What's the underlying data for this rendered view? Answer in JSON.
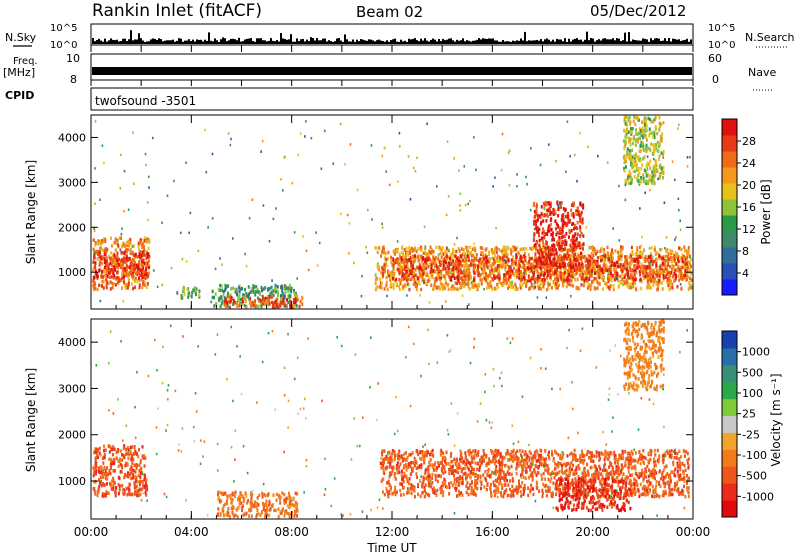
{
  "header": {
    "station": "Rankin Inlet (fitACF)",
    "beam": "Beam 02",
    "date": "05/Dec/2012"
  },
  "strip_labels": {
    "nsky": "N.Sky",
    "nsky_ticks": [
      "10^5",
      "10^0"
    ],
    "nsearch": "N.Search",
    "freq_top": "Freq.",
    "freq_unit": "[MHz]",
    "freq_ticks": [
      "10",
      "8"
    ],
    "nave": "Nave",
    "nave_ticks": [
      "60",
      "0"
    ],
    "cpid": "CPID",
    "cpid_value": "twofsound  -3501"
  },
  "colors": {
    "power_scale": [
      "#1a1aff",
      "#2a4fb8",
      "#2f6f9a",
      "#3f8a6a",
      "#2a9a4a",
      "#8fc43a",
      "#e8c21a",
      "#f39a1a",
      "#f06a18",
      "#e83a16",
      "#e01010"
    ],
    "velocity_scale": [
      "#1a3fb0",
      "#2a6fa8",
      "#3a8f7a",
      "#2aa84a",
      "#7ecb3a",
      "#c8c8c8",
      "#f2a42a",
      "#f27a1a",
      "#ef561a",
      "#ea2a1a",
      "#e00a0a"
    ]
  },
  "chart_data": [
    {
      "type": "heatmap",
      "panel": "power",
      "ylabel": "Slant Range [km]",
      "ylim": [
        180,
        4500
      ],
      "yticks": [
        "1000",
        "2000",
        "3000",
        "4000"
      ],
      "xlim_hours": [
        0,
        24
      ],
      "colorbar_label": "Power [dB]",
      "colorbar_ticks": [
        "4",
        "8",
        "12",
        "16",
        "20",
        "24",
        "28"
      ],
      "colorbar_range": [
        0,
        32
      ],
      "regions": [
        {
          "t0": 0.05,
          "t1": 2.3,
          "r0": 650,
          "r1": 1800,
          "value": 24
        },
        {
          "t0": 0.05,
          "t1": 2.3,
          "r0": 900,
          "r1": 1500,
          "value": 29
        },
        {
          "t0": 3.4,
          "t1": 4.3,
          "r0": 450,
          "r1": 700,
          "value": 14
        },
        {
          "t0": 4.8,
          "t1": 8.2,
          "r0": 250,
          "r1": 750,
          "value": 12
        },
        {
          "t0": 5.2,
          "t1": 8.4,
          "r0": 250,
          "r1": 500,
          "value": 26
        },
        {
          "t0": 11.3,
          "t1": 23.9,
          "r0": 650,
          "r1": 1600,
          "value": 22
        },
        {
          "t0": 12.0,
          "t1": 23.8,
          "r0": 850,
          "r1": 1400,
          "value": 27
        },
        {
          "t0": 17.6,
          "t1": 19.6,
          "r0": 1100,
          "r1": 2600,
          "value": 29
        },
        {
          "t0": 21.2,
          "t1": 22.8,
          "r0": 3000,
          "r1": 4500,
          "value": 18
        }
      ]
    },
    {
      "type": "heatmap",
      "panel": "velocity",
      "ylabel": "Slant Range [km]",
      "ylim": [
        180,
        4500
      ],
      "yticks": [
        "1000",
        "2000",
        "3000",
        "4000"
      ],
      "xlim_hours": [
        0,
        24
      ],
      "xticks": [
        "00:00",
        "04:00",
        "08:00",
        "12:00",
        "16:00",
        "20:00",
        "00:00"
      ],
      "xlabel": "Time UT",
      "colorbar_label": "Velocity [m s⁻¹]",
      "colorbar_ticks": [
        "1000",
        "500",
        "100",
        "25",
        "-25",
        "-100",
        "-500",
        "-1000"
      ],
      "regions": [
        {
          "t0": 0.05,
          "t1": 2.2,
          "r0": 700,
          "r1": 1800,
          "value": -300
        },
        {
          "t0": 5.0,
          "t1": 8.2,
          "r0": 250,
          "r1": 800,
          "value": -150
        },
        {
          "t0": 11.5,
          "t1": 23.8,
          "r0": 700,
          "r1": 1700,
          "value": -250
        },
        {
          "t0": 18.5,
          "t1": 21.5,
          "r0": 400,
          "r1": 1100,
          "value": -600
        },
        {
          "t0": 21.2,
          "t1": 22.8,
          "r0": 3000,
          "r1": 4500,
          "value": -100
        }
      ]
    }
  ]
}
